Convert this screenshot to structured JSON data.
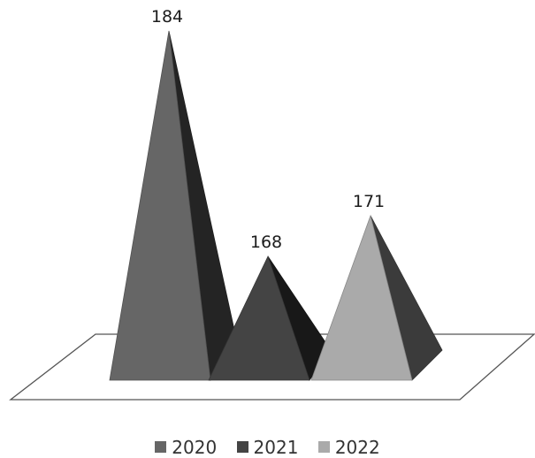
{
  "chart_data": {
    "type": "bar",
    "style": "3d-pyramid",
    "categories": [
      "2020",
      "2021",
      "2022"
    ],
    "values": [
      184,
      168,
      171
    ],
    "data_labels": [
      "184",
      "168",
      "171"
    ],
    "legend": [
      "2020",
      "2021",
      "2022"
    ],
    "legend_position": "bottom",
    "colors": [
      "#666666",
      "#444444",
      "#aaaaaa"
    ],
    "grid": false
  }
}
